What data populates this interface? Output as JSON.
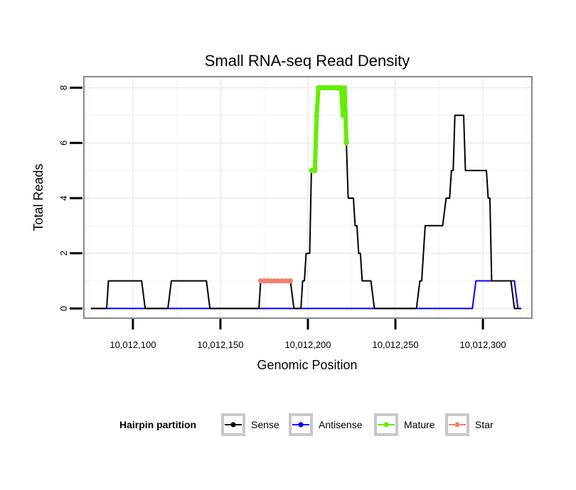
{
  "chart_data": {
    "type": "line",
    "title": "Small RNA-seq Read Density",
    "xlabel": "Genomic Position",
    "ylabel": "Total Reads",
    "xlim": [
      10012072,
      10012328
    ],
    "ylim": [
      -0.35,
      8.4
    ],
    "x_ticks": [
      10012100,
      10012150,
      10012200,
      10012250,
      10012300
    ],
    "x_tick_labels": [
      "10,012,100",
      "10,012,150",
      "10,012,200",
      "10,012,250",
      "10,012,300"
    ],
    "y_ticks": [
      0,
      2,
      4,
      6,
      8
    ],
    "y_tick_labels": [
      "0",
      "2",
      "4",
      "6",
      "8"
    ],
    "grid": true,
    "legend": {
      "title": "Hairpin partition",
      "position": "bottom",
      "entries": [
        {
          "label": "Sense",
          "color": "#000000"
        },
        {
          "label": "Antisense",
          "color": "#0000ff"
        },
        {
          "label": "Mature",
          "color": "#66ee00"
        },
        {
          "label": "Star",
          "color": "#f08070"
        }
      ]
    },
    "series": [
      {
        "name": "Sense",
        "color": "#000000",
        "points": [
          [
            10012076,
            0
          ],
          [
            10012085,
            0
          ],
          [
            10012086,
            1
          ],
          [
            10012090,
            1
          ],
          [
            10012100,
            1
          ],
          [
            10012105,
            1
          ],
          [
            10012107,
            0
          ],
          [
            10012120,
            0
          ],
          [
            10012122,
            1
          ],
          [
            10012130,
            1
          ],
          [
            10012142,
            1
          ],
          [
            10012144,
            0
          ],
          [
            10012150,
            0
          ],
          [
            10012168,
            0
          ],
          [
            10012172,
            0
          ],
          [
            10012173,
            1
          ],
          [
            10012190,
            1
          ],
          [
            10012192,
            0
          ],
          [
            10012196,
            0
          ],
          [
            10012197,
            1
          ],
          [
            10012198,
            1
          ],
          [
            10012199,
            2
          ],
          [
            10012201,
            2
          ],
          [
            10012202,
            5
          ],
          [
            10012204,
            5
          ],
          [
            10012205,
            7
          ],
          [
            10012206,
            8
          ],
          [
            10012215,
            8
          ],
          [
            10012219,
            8
          ],
          [
            10012220,
            7
          ],
          [
            10012221,
            8
          ],
          [
            10012222,
            6
          ],
          [
            10012223,
            4
          ],
          [
            10012226,
            4
          ],
          [
            10012227,
            3
          ],
          [
            10012228,
            3
          ],
          [
            10012229,
            2
          ],
          [
            10012230,
            2
          ],
          [
            10012231,
            1
          ],
          [
            10012236,
            1
          ],
          [
            10012238,
            0
          ],
          [
            10012250,
            0
          ],
          [
            10012262,
            0
          ],
          [
            10012264,
            1
          ],
          [
            10012265,
            1
          ],
          [
            10012267,
            3
          ],
          [
            10012277,
            3
          ],
          [
            10012279,
            4
          ],
          [
            10012281,
            4
          ],
          [
            10012282,
            5
          ],
          [
            10012283,
            5
          ],
          [
            10012284,
            7
          ],
          [
            10012289,
            7
          ],
          [
            10012290,
            5
          ],
          [
            10012300,
            5
          ],
          [
            10012302,
            5
          ],
          [
            10012303,
            4
          ],
          [
            10012304,
            4
          ],
          [
            10012305,
            1
          ],
          [
            10012316,
            1
          ],
          [
            10012318,
            0
          ],
          [
            10012322,
            0
          ]
        ]
      },
      {
        "name": "Antisense",
        "color": "#0000ff",
        "points": [
          [
            10012076,
            0
          ],
          [
            10012294,
            0
          ],
          [
            10012296,
            1
          ],
          [
            10012318,
            1
          ],
          [
            10012320,
            0
          ]
        ]
      },
      {
        "name": "Mature",
        "color": "#66ee00",
        "points": [
          [
            10012202,
            5
          ],
          [
            10012203,
            5
          ],
          [
            10012204,
            5
          ],
          [
            10012205,
            7
          ],
          [
            10012206,
            8
          ],
          [
            10012207,
            8
          ],
          [
            10012208,
            8
          ],
          [
            10012209,
            8
          ],
          [
            10012210,
            8
          ],
          [
            10012211,
            8
          ],
          [
            10012212,
            8
          ],
          [
            10012213,
            8
          ],
          [
            10012214,
            8
          ],
          [
            10012215,
            8
          ],
          [
            10012216,
            8
          ],
          [
            10012217,
            8
          ],
          [
            10012218,
            8
          ],
          [
            10012219,
            8
          ],
          [
            10012220,
            7
          ],
          [
            10012221,
            8
          ],
          [
            10012222,
            6
          ]
        ]
      },
      {
        "name": "Star",
        "color": "#f08070",
        "points": [
          [
            10012173,
            1
          ],
          [
            10012175,
            1
          ],
          [
            10012177,
            1
          ],
          [
            10012179,
            1
          ],
          [
            10012181,
            1
          ],
          [
            10012183,
            1
          ],
          [
            10012185,
            1
          ],
          [
            10012187,
            1
          ],
          [
            10012189,
            1
          ],
          [
            10012190,
            1
          ]
        ]
      }
    ]
  }
}
